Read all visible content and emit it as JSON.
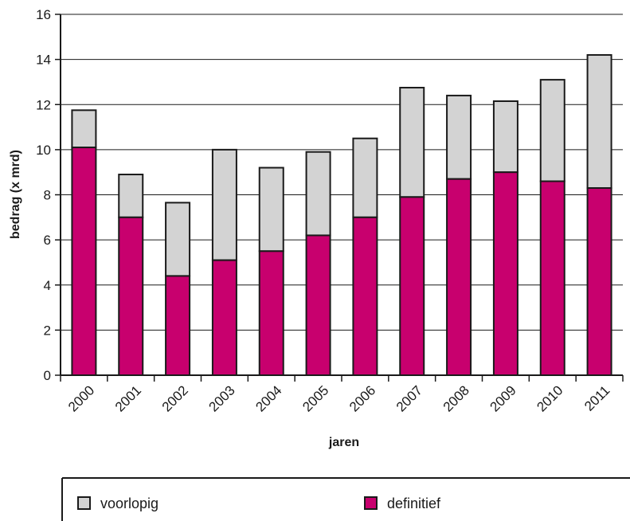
{
  "chart_data": {
    "type": "bar",
    "stacked": true,
    "categories": [
      "2000",
      "2001",
      "2002",
      "2003",
      "2004",
      "2005",
      "2006",
      "2007",
      "2008",
      "2009",
      "2010",
      "2011"
    ],
    "series": [
      {
        "name": "definitief",
        "color": "#c8006e",
        "values": [
          10.1,
          7.0,
          4.4,
          5.1,
          5.5,
          6.2,
          7.0,
          7.9,
          8.7,
          9.0,
          8.6,
          8.3
        ]
      },
      {
        "name": "voorlopig",
        "color": "#d3d3d3",
        "values": [
          1.65,
          1.9,
          3.25,
          4.9,
          3.7,
          3.7,
          3.5,
          4.85,
          3.7,
          3.15,
          4.5,
          5.9
        ]
      }
    ],
    "xlabel": "jaren",
    "ylabel": "bedrag (x mrd)",
    "ylim": [
      0,
      16
    ],
    "yticks": [
      0,
      2,
      4,
      6,
      8,
      10,
      12,
      14,
      16
    ],
    "grid": true,
    "legend": {
      "position": "bottom",
      "order": [
        "voorlopig",
        "definitief"
      ]
    }
  }
}
